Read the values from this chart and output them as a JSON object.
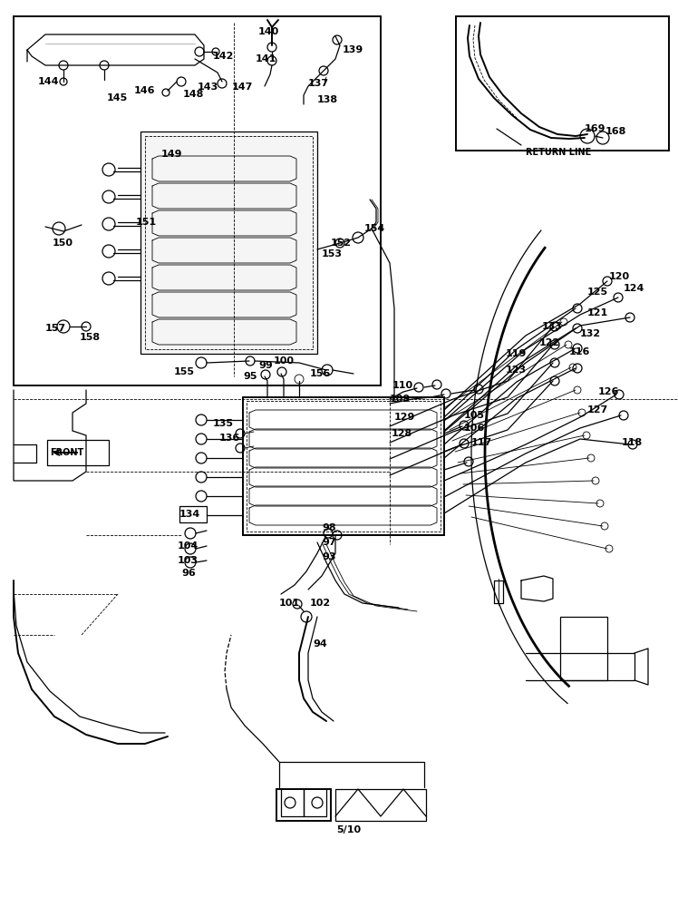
{
  "background_color": "#ffffff",
  "line_color": "#000000",
  "figure_width": 7.48,
  "figure_height": 10.0,
  "dpi": 100,
  "page_number": "5/10",
  "return_line_text": "RETURN LINE",
  "gray_level": 0.85
}
